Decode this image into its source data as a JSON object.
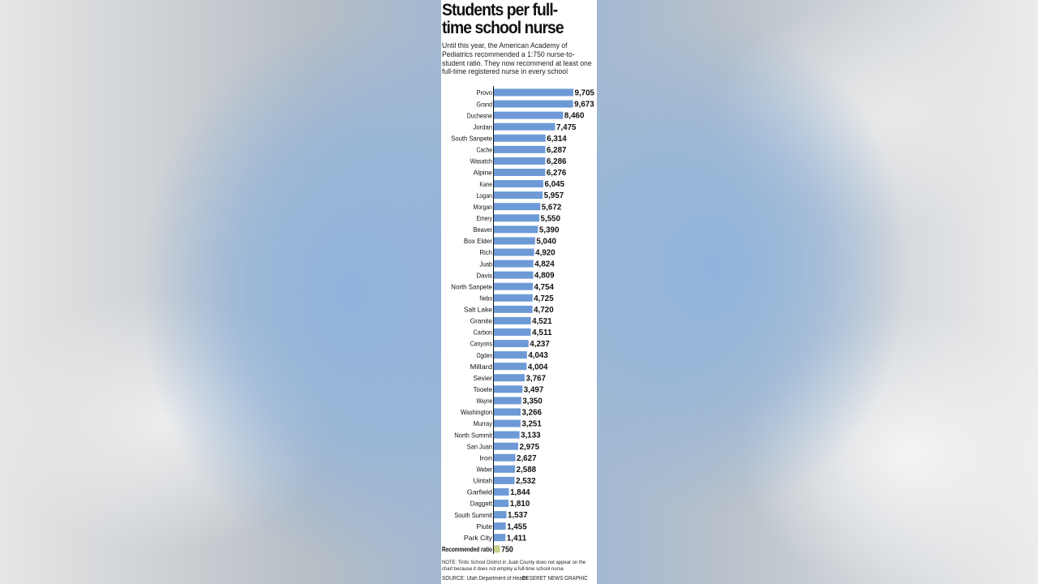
{
  "graphic": {
    "title": "Students per full-time school nurse",
    "subtitle": "Until this year, the American Academy of Pediatrics recommended a 1:750 nurse-to-student ratio. They now recommend at least one full-time registered nurse in every school",
    "note": "NOTE: Tintic School District in Juab County does not appear on the chart because it does not employ a full-time school nurse.",
    "source": "SOURCE: Utah Department of Health",
    "credit": "DESERET NEWS GRAPHIC"
  },
  "colors": {
    "bar": "#6d9ad6",
    "recommended_bar": "#c4d48a",
    "text": "#111111"
  },
  "chart_data": {
    "type": "bar",
    "orientation": "horizontal",
    "categories": [
      "Provo",
      "Grand",
      "Duchesne",
      "Jordan",
      "South Sanpete",
      "Cache",
      "Wasatch",
      "Alpine",
      "Kane",
      "Logan",
      "Morgan",
      "Emery",
      "Beaver",
      "Box Elder",
      "Rich",
      "Juab",
      "Davis",
      "North Sanpete",
      "Nebo",
      "Salt Lake",
      "Granite",
      "Carbon",
      "Canyons",
      "Ogden",
      "Millard",
      "Sevier",
      "Tooele",
      "Wayne",
      "Washington",
      "Murray",
      "North Summit",
      "San Juan",
      "Iron",
      "Weber",
      "Uintah",
      "Garfield",
      "Daggett",
      "South Summit",
      "Piute",
      "Park City",
      "Recommended ratio"
    ],
    "values": [
      9705,
      9673,
      8460,
      7475,
      6314,
      6287,
      6286,
      6276,
      6045,
      5957,
      5672,
      5550,
      5390,
      5040,
      4920,
      4824,
      4809,
      4754,
      4725,
      4720,
      4521,
      4511,
      4237,
      4043,
      4004,
      3767,
      3497,
      3350,
      3266,
      3251,
      3133,
      2975,
      2627,
      2588,
      2532,
      1844,
      1810,
      1537,
      1455,
      1411,
      750
    ],
    "value_labels": [
      "9,705",
      "9,673",
      "8,460",
      "7,475",
      "6,314",
      "6,287",
      "6,286",
      "6,276",
      "6,045",
      "5,957",
      "5,672",
      "5,550",
      "5,390",
      "5,040",
      "4,920",
      "4,824",
      "4,809",
      "4,754",
      "4,725",
      "4,720",
      "4,521",
      "4,511",
      "4,237",
      "4,043",
      "4,004",
      "3,767",
      "3,497",
      "3,350",
      "3,266",
      "3,251",
      "3,133",
      "2,975",
      "2,627",
      "2,588",
      "2,532",
      "1,844",
      "1,810",
      "1,537",
      "1,455",
      "1,411",
      "750"
    ],
    "highlight_category": "Recommended ratio",
    "title": "Students per full-time school nurse",
    "xlabel": "",
    "ylabel": "",
    "xlim": [
      0,
      9705
    ],
    "grid": false,
    "legend": "none"
  }
}
